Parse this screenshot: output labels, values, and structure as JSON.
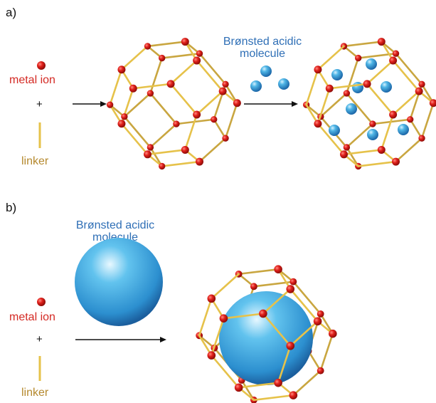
{
  "panel_a": {
    "label": "a)",
    "metal_ion": "metal ion",
    "plus": "+",
    "linker": "linker",
    "bronsted_line1": "Brønsted acidic",
    "bronsted_line2": "molecule"
  },
  "panel_b": {
    "label": "b)",
    "metal_ion": "metal ion",
    "plus": "+",
    "linker": "linker",
    "bronsted_line1": "Brønsted acidic",
    "bronsted_line2": "molecule"
  },
  "colors": {
    "metal_node": "#e0201b",
    "linker_rod": "#e6c24a",
    "molecule": "#3aa5dc",
    "label_blue": "#2f6fb6",
    "label_red": "#d42a24",
    "label_gold": "#b5892e"
  }
}
